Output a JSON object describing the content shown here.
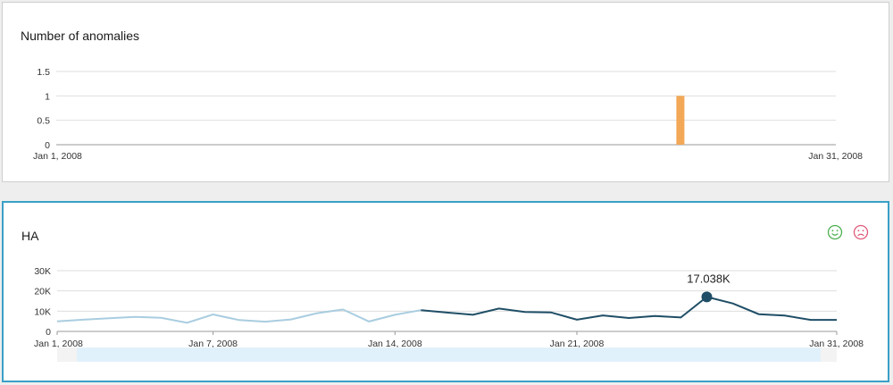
{
  "panels": {
    "anomalies": {
      "title": "Number of anomalies"
    },
    "ha": {
      "title": "HA",
      "tooltip": "17.038K"
    }
  },
  "icons": {
    "happy": "smiley-face-icon",
    "sad": "frowny-face-icon"
  },
  "colors": {
    "anomaly_bar": "#f2a857",
    "line_past": "#a9cde0",
    "line_recent": "#1f4e66",
    "selection": "#e1f1fb",
    "panel_border": "#3a9fc7",
    "happy": "#4caf50",
    "sad": "#e05a7a"
  },
  "chart_data": [
    {
      "type": "bar",
      "title": "Number of anomalies",
      "xlabel": "",
      "ylabel": "",
      "x_range": [
        "Jan 1, 2008",
        "Jan 31, 2008"
      ],
      "ylim": [
        0,
        1.5
      ],
      "yticks": [
        "0",
        "0.5",
        "1",
        "1.5"
      ],
      "xtick_labels": [
        "Jan 1, 2008",
        "Jan 31, 2008"
      ],
      "bars": [
        {
          "x": "Jan 25, 2008",
          "value": 1
        }
      ],
      "grid": true
    },
    {
      "type": "line",
      "title": "HA",
      "xlabel": "",
      "ylabel": "",
      "ylim": [
        0,
        30000
      ],
      "yticks": [
        "0",
        "10K",
        "20K",
        "30K"
      ],
      "xtick_labels": [
        "Jan 1, 2008",
        "Jan 7, 2008",
        "Jan 14, 2008",
        "Jan 21, 2008",
        "Jan 31, 2008"
      ],
      "x": [
        "Jan 1, 2008",
        "Jan 2, 2008",
        "Jan 3, 2008",
        "Jan 4, 2008",
        "Jan 5, 2008",
        "Jan 6, 2008",
        "Jan 7, 2008",
        "Jan 8, 2008",
        "Jan 9, 2008",
        "Jan 10, 2008",
        "Jan 11, 2008",
        "Jan 12, 2008",
        "Jan 13, 2008",
        "Jan 14, 2008",
        "Jan 15, 2008",
        "Jan 16, 2008",
        "Jan 17, 2008",
        "Jan 18, 2008",
        "Jan 19, 2008",
        "Jan 20, 2008",
        "Jan 21, 2008",
        "Jan 22, 2008",
        "Jan 23, 2008",
        "Jan 24, 2008",
        "Jan 25, 2008",
        "Jan 26, 2008",
        "Jan 27, 2008",
        "Jan 28, 2008",
        "Jan 29, 2008",
        "Jan 30, 2008",
        "Jan 31, 2008"
      ],
      "series": [
        {
          "name": "",
          "values": [
            5000,
            5800,
            6500,
            7200,
            6700,
            4300,
            8400,
            5600,
            4800,
            5900,
            9000,
            10800,
            4900,
            8200,
            10500,
            9300,
            8200,
            11300,
            9600,
            9400,
            5800,
            7900,
            6600,
            7600,
            6900,
            17038,
            13800,
            8500,
            7800,
            5700,
            5700
          ]
        }
      ],
      "highlight": {
        "x": "Jan 26, 2008",
        "value": 17038,
        "label": "17.038K"
      },
      "split_x": "Jan 15, 2008",
      "grid": true
    }
  ]
}
